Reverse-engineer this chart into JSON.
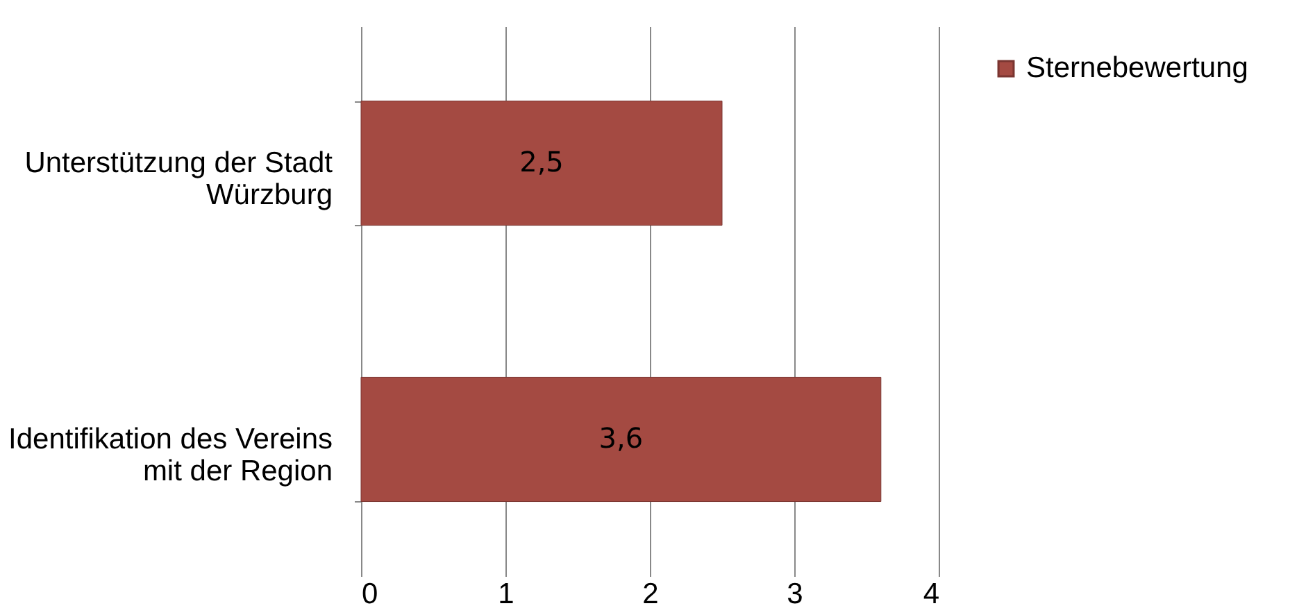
{
  "chart_data": {
    "type": "bar",
    "orientation": "horizontal",
    "categories": [
      "Unterstützung der Stadt Würzburg",
      "Identifikation des Vereins mit der Region"
    ],
    "series": [
      {
        "name": "Sternebewertung",
        "color": "#a44a42",
        "values": [
          2.5,
          3.6
        ],
        "value_labels": [
          "2,5",
          "3,6"
        ]
      }
    ],
    "xlim": [
      0,
      4
    ],
    "xticks": [
      0,
      1,
      2,
      3,
      4
    ],
    "grid": "x",
    "legend": "right"
  }
}
